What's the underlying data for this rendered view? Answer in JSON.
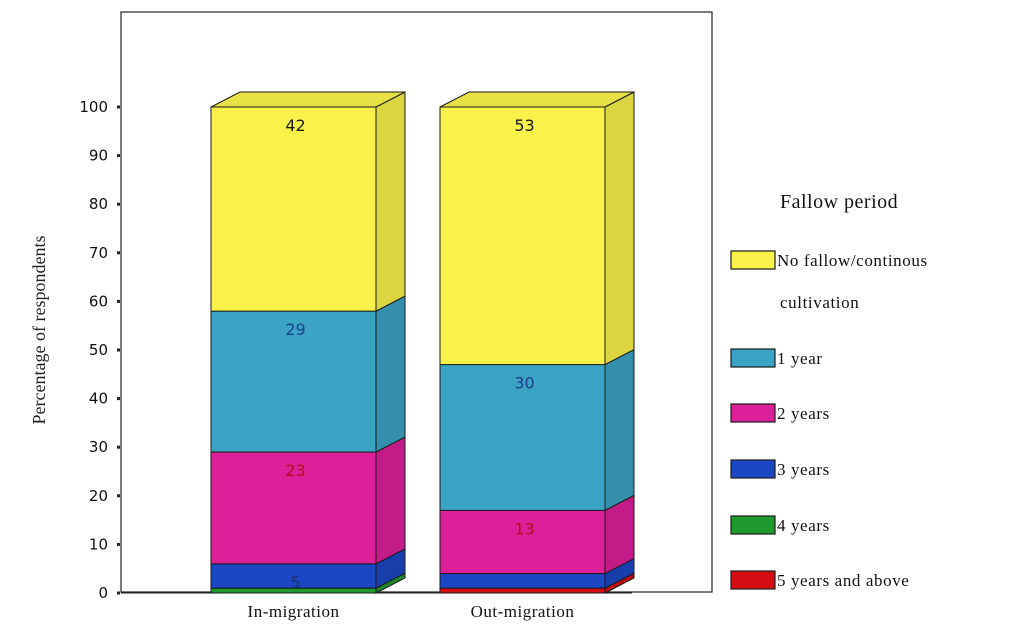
{
  "chart_data": {
    "type": "bar",
    "stacked": true,
    "three_d": true,
    "title": "",
    "xlabel": "",
    "ylabel": "Percentage of respondents",
    "ylim": [
      0,
      100
    ],
    "yticks": [
      "0",
      "10",
      "20",
      "30",
      "40",
      "50",
      "60",
      "70",
      "80",
      "90",
      "100"
    ],
    "categories": [
      "In-migration",
      "Out-migration"
    ],
    "legend_title": "Fallow period",
    "legend_position": "right",
    "series": [
      {
        "name": "5 years and above",
        "color": "#d40d12",
        "values": [
          0,
          1
        ],
        "labels": [
          "",
          ""
        ]
      },
      {
        "name": "4 years",
        "color": "#1f9a2e",
        "values": [
          1,
          0
        ],
        "labels": [
          "",
          ""
        ]
      },
      {
        "name": "3 years",
        "color": "#1b47c4",
        "values": [
          5,
          3
        ],
        "labels": [
          "5",
          ""
        ]
      },
      {
        "name": "2 years",
        "color": "#dd1f9a",
        "values": [
          23,
          13
        ],
        "labels": [
          "23",
          "13"
        ]
      },
      {
        "name": "1 year",
        "color": "#3ba3c4",
        "values": [
          29,
          30
        ],
        "labels": [
          "29",
          "30"
        ]
      },
      {
        "name": "No fallow/continous cultivation",
        "color": "#f8f24a",
        "values": [
          42,
          53
        ],
        "labels": [
          "42",
          "53"
        ]
      }
    ],
    "legend_lines": [
      [
        "No fallow/continous",
        "cultivation"
      ],
      [
        "1 year"
      ],
      [
        "2 years"
      ],
      [
        "3 years"
      ],
      [
        "4 years"
      ],
      [
        "5 years and above"
      ]
    ],
    "label_colors": {
      "No fallow/continous cultivation": "#1a1a1a",
      "1 year": "#1c3f8a",
      "2 years": "#b0101e",
      "3 years": "#1c2f6e"
    }
  }
}
